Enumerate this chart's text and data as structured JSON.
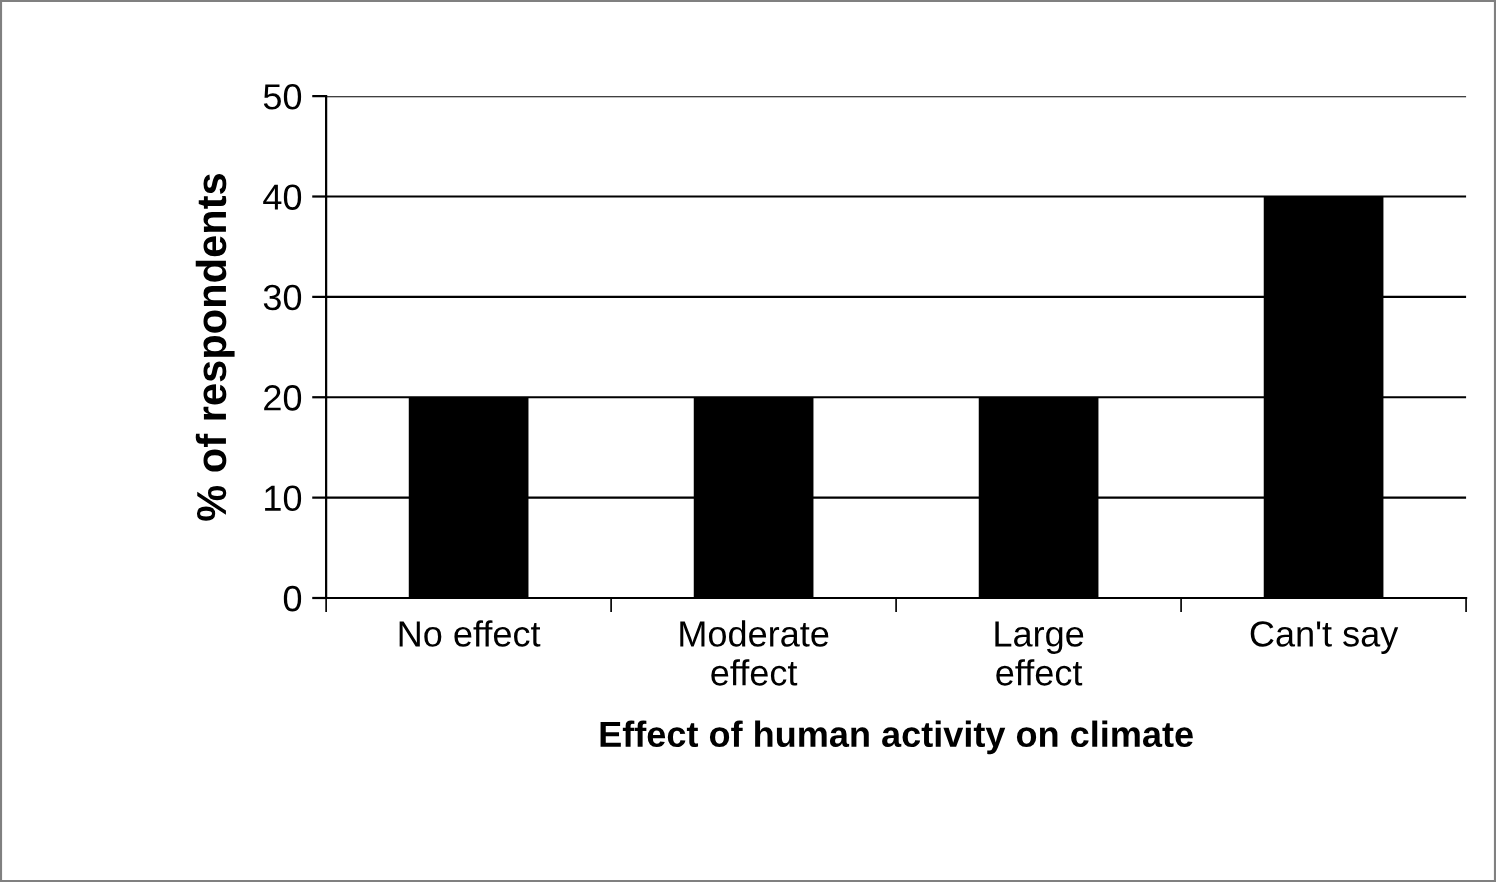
{
  "chart_data": {
    "type": "bar",
    "xlabel": "Effect of human activity on climate",
    "ylabel": "% of respondents",
    "categories": [
      "No effect",
      "Moderate\neffect",
      "Large\neffect",
      "Can't say"
    ],
    "values": [
      20,
      20,
      20,
      40
    ],
    "color": "#000000",
    "ylim": [
      0,
      50
    ],
    "yticks": [
      0,
      10,
      20,
      30,
      40,
      50
    ],
    "grid": "y"
  }
}
